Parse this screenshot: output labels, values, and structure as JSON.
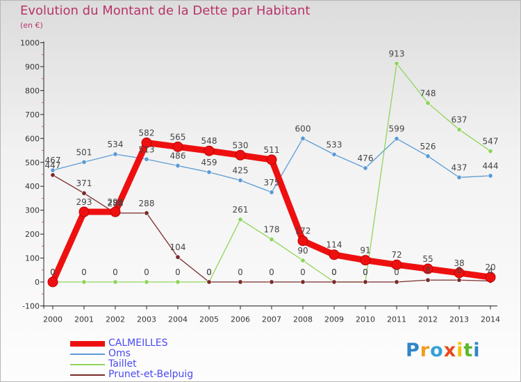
{
  "chart_data": {
    "type": "line",
    "title": "Evolution du Montant de la Dette par Habitant",
    "subtitle": "(en €)",
    "x": [
      "2000",
      "2001",
      "2002",
      "2003",
      "2004",
      "2005",
      "2006",
      "2007",
      "2008",
      "2009",
      "2010",
      "2011",
      "2012",
      "2013",
      "2014"
    ],
    "ylim": [
      -100,
      1000
    ],
    "yticks": [
      "-100",
      "0",
      "100",
      "200",
      "300",
      "400",
      "500",
      "600",
      "700",
      "800",
      "900",
      "1000"
    ],
    "grid": false,
    "legend_position": "bottom-left",
    "series": [
      {
        "name": "Oms",
        "color": "#5b9bd5",
        "values": [
          467,
          501,
          534,
          513,
          486,
          459,
          425,
          375,
          600,
          533,
          476,
          599,
          526,
          437,
          444
        ],
        "labels": [
          "467",
          "501",
          "534",
          "513",
          "486",
          "459",
          "425",
          "375",
          "600",
          "533",
          "476",
          "599",
          "526",
          "437",
          "444"
        ]
      },
      {
        "name": "Taillet",
        "color": "#8fd45a",
        "values": [
          0,
          0,
          0,
          0,
          0,
          0,
          261,
          178,
          90,
          0,
          0,
          913,
          748,
          637,
          547
        ],
        "labels": [
          "0",
          "0",
          "0",
          "0",
          "0",
          "0",
          "261",
          "178",
          "90",
          "0",
          "0",
          "913",
          "748",
          "637",
          "547"
        ]
      },
      {
        "name": "Prunet-et-Belpuig",
        "color": "#7a2a2a",
        "values": [
          447,
          371,
          288,
          288,
          104,
          0,
          0,
          0,
          0,
          0,
          0,
          0,
          8,
          8,
          4
        ],
        "labels": [
          "447",
          "371",
          "288",
          "288",
          "104",
          "0",
          "0",
          "0",
          "0",
          "0",
          "0",
          "0",
          "8",
          "8",
          "4"
        ]
      },
      {
        "name": "CALMEILLES",
        "color": "#ee1010",
        "values": [
          0,
          293,
          293,
          582,
          565,
          548,
          530,
          511,
          172,
          114,
          91,
          72,
          55,
          38,
          20
        ],
        "labels": [
          "0",
          "293",
          "293",
          "582",
          "565",
          "548",
          "530",
          "511",
          "172",
          "114",
          "91",
          "72",
          "55",
          "38",
          "20"
        ]
      }
    ]
  },
  "legend_order": [
    "CALMEILLES",
    "Oms",
    "Taillet",
    "Prunet-et-Belpuig"
  ],
  "brand": {
    "letters": [
      "P",
      "r",
      "o",
      "x",
      "i",
      "t",
      "i"
    ],
    "colors": [
      "#2e86c8",
      "#f29c1f",
      "#3aa0d8",
      "#e84a1c",
      "#f2c200",
      "#5ab82e",
      "#2e86c8"
    ]
  }
}
